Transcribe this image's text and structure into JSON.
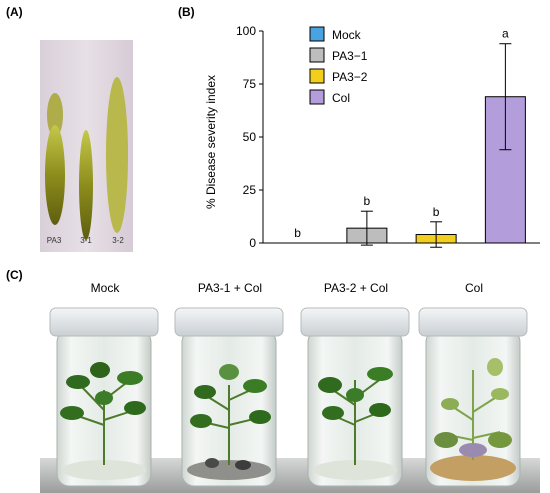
{
  "panels": {
    "a_label": "(A)",
    "b_label": "(B)",
    "c_label": "(C)"
  },
  "tlc": {
    "lane_labels": [
      "PA3",
      "3-1",
      "3-2"
    ]
  },
  "chart_data": {
    "type": "bar",
    "categories": [
      "Mock",
      "PA3-1",
      "PA3-2",
      "Col"
    ],
    "values": [
      0,
      7,
      4,
      69
    ],
    "errors": [
      0,
      8,
      6,
      25
    ],
    "significance": [
      "b",
      "b",
      "b",
      "a"
    ],
    "ylabel": "% Disease severity index",
    "ylim": [
      0,
      100
    ],
    "yticks": [
      0,
      25,
      50,
      75,
      100
    ],
    "legend": [
      "Mock",
      "PA3−1",
      "PA3−2",
      "Col"
    ],
    "legend_position": "top-center",
    "colors": [
      "#4aa3df",
      "#bdbdbd",
      "#f2cf1d",
      "#b39ddb"
    ],
    "grid": false
  },
  "jars": {
    "captions": [
      "Mock",
      "PA3-1 + Col",
      "PA3-2 + Col",
      "Col"
    ]
  }
}
